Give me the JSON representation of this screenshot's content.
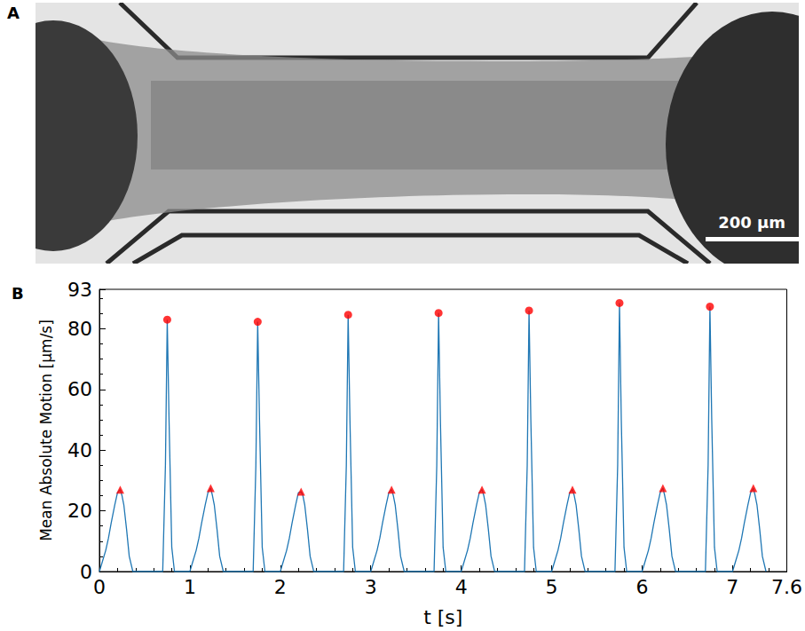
{
  "panel_a": {
    "letter": "A",
    "scale_bar": "200 µm"
  },
  "chart_data": {
    "type": "line",
    "title": "B",
    "x_label": "t [s]",
    "y_label": "Mean Absolute Motion [µm/s]",
    "xlim": [
      0,
      7.6
    ],
    "xticks": [
      0,
      1,
      2,
      3,
      4,
      5,
      6,
      7
    ],
    "ylim": [
      0,
      93
    ],
    "yticks": [
      0,
      20,
      40,
      60,
      80
    ],
    "grid": false,
    "series": [
      {
        "type": "line",
        "color": "#1f77b4",
        "marker": "none",
        "x": [
          0,
          0.03,
          0.07,
          0.1,
          0.13,
          0.17,
          0.2,
          0.23,
          0.25,
          0.27,
          0.3,
          0.33,
          0.37,
          0.7,
          0.73,
          0.75,
          0.77,
          0.8,
          0.83,
          1,
          1.03,
          1.07,
          1.1,
          1.13,
          1.17,
          1.2,
          1.23,
          1.25,
          1.27,
          1.3,
          1.33,
          1.37,
          1.7,
          1.73,
          1.75,
          1.77,
          1.8,
          1.83,
          2,
          2.03,
          2.07,
          2.1,
          2.13,
          2.17,
          2.2,
          2.23,
          2.25,
          2.27,
          2.3,
          2.33,
          2.37,
          2.7,
          2.73,
          2.75,
          2.77,
          2.8,
          2.83,
          3,
          3.03,
          3.07,
          3.1,
          3.13,
          3.17,
          3.2,
          3.23,
          3.25,
          3.27,
          3.3,
          3.33,
          3.37,
          3.7,
          3.73,
          3.75,
          3.77,
          3.8,
          3.83,
          4,
          4.03,
          4.07,
          4.1,
          4.13,
          4.17,
          4.2,
          4.23,
          4.25,
          4.27,
          4.3,
          4.33,
          4.37,
          4.7,
          4.73,
          4.75,
          4.77,
          4.8,
          4.83,
          5,
          5.03,
          5.07,
          5.1,
          5.13,
          5.17,
          5.2,
          5.23,
          5.25,
          5.27,
          5.3,
          5.33,
          5.37,
          5.7,
          5.73,
          5.75,
          5.77,
          5.8,
          5.83,
          6,
          6.03,
          6.07,
          6.1,
          6.13,
          6.17,
          6.2,
          6.23,
          6.25,
          6.27,
          6.3,
          6.33,
          6.37,
          6.7,
          6.73,
          6.75,
          6.77,
          6.8,
          6.83,
          7,
          7.03,
          7.07,
          7.1,
          7.13,
          7.17,
          7.2,
          7.23,
          7.25,
          7.27,
          7.3,
          7.33,
          7.37
        ],
        "values": [
          0,
          3,
          7,
          11,
          16,
          22,
          26,
          27,
          25,
          22,
          14,
          5,
          0,
          0,
          35,
          83,
          50,
          8,
          0,
          0,
          3,
          7,
          11,
          16,
          22,
          26,
          27.5,
          25,
          22,
          14,
          5,
          0,
          0,
          35,
          82.3,
          50,
          8,
          0,
          0,
          3,
          7,
          11,
          16,
          22,
          26,
          26.3,
          25,
          22,
          14,
          5,
          0,
          0,
          35,
          84.6,
          50,
          8,
          0,
          0,
          3,
          7,
          11,
          16,
          22,
          26,
          27,
          25,
          22,
          14,
          5,
          0,
          0,
          35,
          85.2,
          50,
          8,
          0,
          0,
          3,
          7,
          11,
          16,
          22,
          26,
          27,
          25,
          22,
          14,
          5,
          0,
          0,
          35,
          86,
          50,
          8,
          0,
          0,
          3,
          7,
          11,
          16,
          22,
          26,
          27,
          25,
          22,
          14,
          5,
          0,
          0,
          35,
          88.5,
          50,
          8,
          0,
          0,
          3,
          7,
          11,
          16,
          22,
          26,
          27.5,
          25,
          22,
          14,
          5,
          0,
          0,
          35,
          87.3,
          50,
          8,
          0,
          0,
          3,
          7,
          11,
          16,
          22,
          26,
          27.5,
          25,
          22,
          14,
          5,
          0
        ]
      },
      {
        "type": "scatter",
        "color": "#ff0000",
        "marker": "triangle",
        "x": [
          0.23,
          1.23,
          2.23,
          3.23,
          4.23,
          5.23,
          6.23,
          7.23
        ],
        "values": [
          27,
          27.5,
          26.3,
          27,
          27,
          27,
          27.5,
          27.5
        ]
      },
      {
        "type": "scatter",
        "color": "#ff0000",
        "marker": "circle",
        "x": [
          0.75,
          1.75,
          2.75,
          3.75,
          4.75,
          5.75,
          6.75
        ],
        "values": [
          83,
          82.3,
          84.6,
          85.2,
          86,
          88.5,
          87.3
        ]
      }
    ]
  }
}
